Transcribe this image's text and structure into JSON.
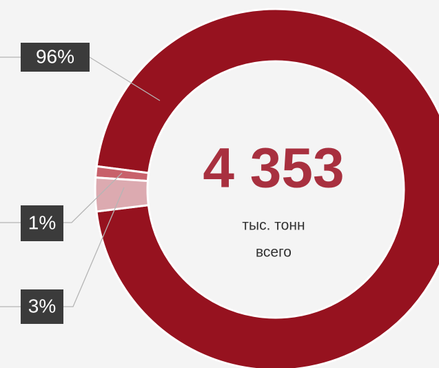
{
  "chart_data": {
    "type": "donut",
    "center_value": "4 353",
    "center_label_1": "тыс. тонн",
    "center_label_2": "всего",
    "values": [
      96,
      1,
      3
    ],
    "value_labels": [
      "96%",
      "1%",
      "3%"
    ],
    "colors": [
      "#96121f",
      "#c8616b",
      "#dcaab0"
    ]
  }
}
